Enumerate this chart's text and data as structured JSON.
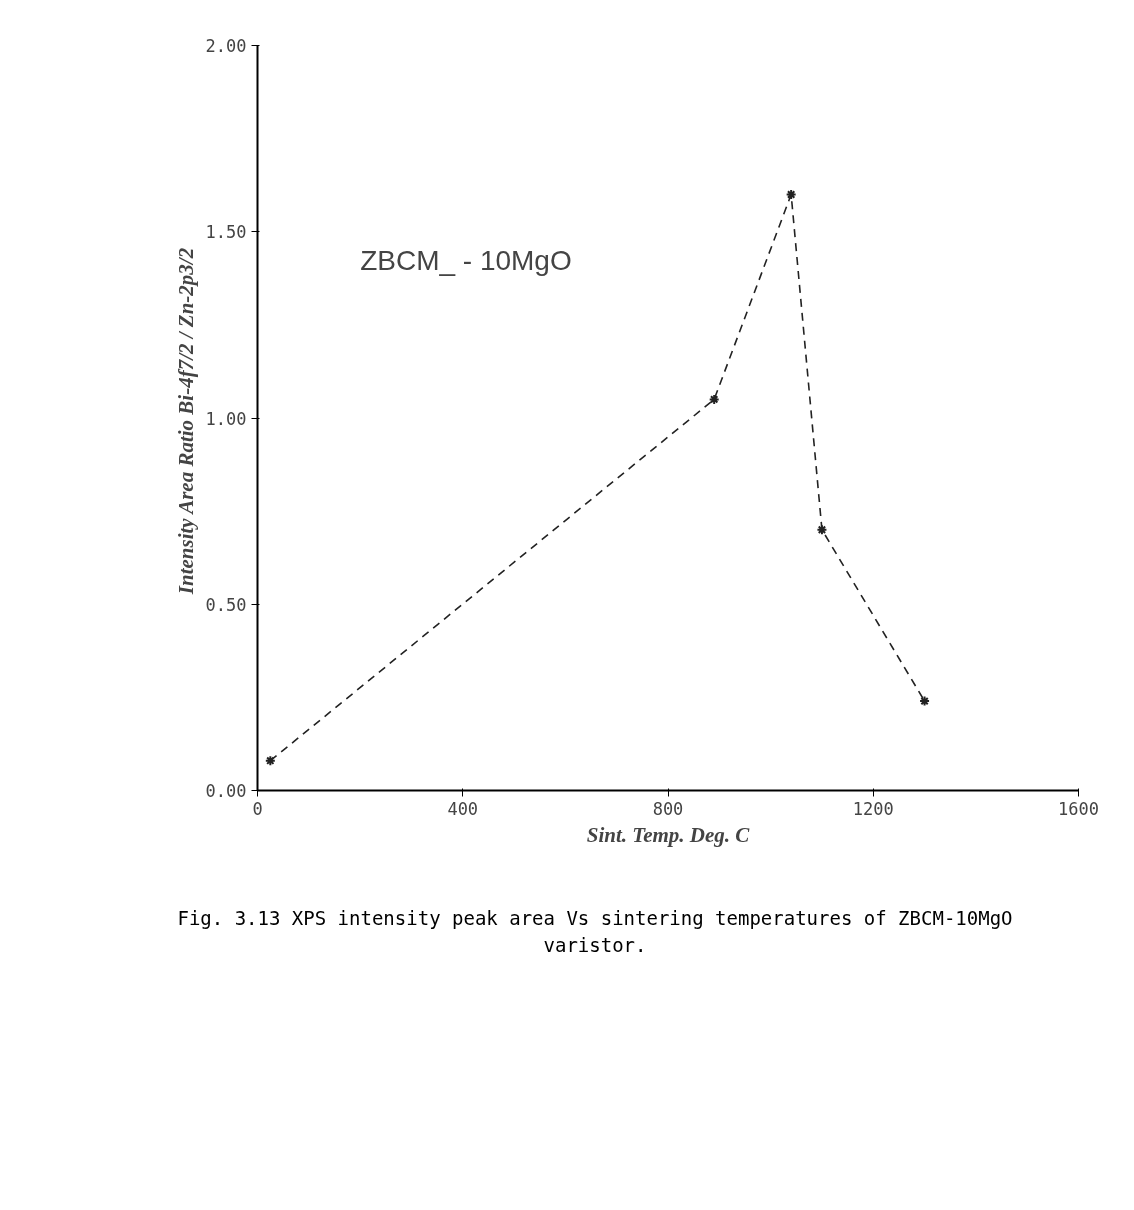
{
  "chart_data": {
    "type": "line",
    "x": [
      25,
      890,
      1040,
      1100,
      1300
    ],
    "values": [
      0.08,
      1.05,
      1.6,
      0.7,
      0.24
    ],
    "color": "#222222",
    "xlabel": "Sint. Temp. Deg. C",
    "ylabel": "Intensity Area Ratio  Bi-4f7/2 / Zn-2p3/2",
    "xlim": [
      0,
      1600
    ],
    "xticks": [
      0,
      400,
      800,
      1200,
      1600
    ],
    "ylim": [
      0,
      2
    ],
    "yticks": [
      {
        "value": 0,
        "label": "0.00"
      },
      {
        "value": 0.5,
        "label": "0.50"
      },
      {
        "value": 1,
        "label": "1.00"
      },
      {
        "value": 1.5,
        "label": "1.50"
      },
      {
        "value": 2,
        "label": "2.00"
      }
    ],
    "grid": false,
    "marker": "cross",
    "line_style": "dashed",
    "annotations": [
      "ZBCM_ - 10MgO",
      "Fig. 3.13 XPS intensity peak area Vs sintering temperatures of ZBCM-10MgO varistor."
    ]
  }
}
